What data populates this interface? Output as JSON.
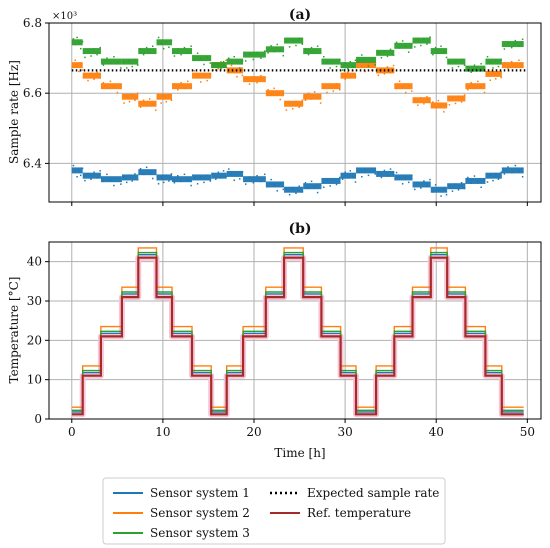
{
  "chart_data": [
    {
      "type": "scatter",
      "panel_label": "(a)",
      "xlabel": "",
      "ylabel": "Sample rate [Hz]",
      "y_multiplier_label": "×10³",
      "xlim": [
        -2.5,
        51.5
      ],
      "ylim": [
        6.29,
        6.8
      ],
      "xticks": [
        0,
        10,
        20,
        30,
        40,
        50
      ],
      "yticks": [
        6.4,
        6.6,
        6.8
      ],
      "ytick_labels": [
        "6.4",
        "6.6",
        "6.8"
      ],
      "xtick_labels_shown": false,
      "grid": true,
      "step_times": [
        0,
        1.2,
        3.2,
        5.5,
        7.3,
        9.3,
        11.0,
        13.2,
        15.3,
        17.0,
        18.8,
        21.3,
        23.3,
        25.4,
        27.4,
        29.5,
        31.2,
        33.4,
        35.4,
        37.4,
        39.4,
        41.2,
        43.2,
        45.4,
        47.2,
        49.6
      ],
      "expected_rate": 6.665,
      "series": [
        {
          "name": "Sensor system 1",
          "color": "#1f77b4",
          "values": [
            6.38,
            6.365,
            6.355,
            6.36,
            6.375,
            6.36,
            6.355,
            6.36,
            6.365,
            6.37,
            6.355,
            6.34,
            6.325,
            6.335,
            6.35,
            6.365,
            6.38,
            6.37,
            6.36,
            6.34,
            6.325,
            6.335,
            6.35,
            6.365,
            6.38
          ]
        },
        {
          "name": "Sensor system 2",
          "color": "#ff7f0e",
          "values": [
            6.68,
            6.65,
            6.62,
            6.59,
            6.57,
            6.59,
            6.62,
            6.65,
            6.68,
            6.665,
            6.64,
            6.6,
            6.57,
            6.59,
            6.62,
            6.65,
            6.68,
            6.665,
            6.62,
            6.58,
            6.565,
            6.585,
            6.62,
            6.655,
            6.68
          ]
        },
        {
          "name": "Sensor system 3",
          "color": "#2ca02c",
          "values": [
            6.745,
            6.72,
            6.69,
            6.69,
            6.72,
            6.745,
            6.72,
            6.7,
            6.68,
            6.69,
            6.71,
            6.725,
            6.75,
            6.72,
            6.69,
            6.68,
            6.695,
            6.715,
            6.735,
            6.75,
            6.72,
            6.69,
            6.67,
            6.69,
            6.74
          ]
        },
        {
          "name": "Expected sample rate",
          "color": "#000000",
          "style": "dotted",
          "x": [
            0,
            50
          ],
          "values": [
            6.665,
            6.665
          ]
        }
      ]
    },
    {
      "type": "line",
      "panel_label": "(b)",
      "xlabel": "Time [h]",
      "ylabel": "Temperature [°C]",
      "xlim": [
        -2.5,
        51.5
      ],
      "ylim": [
        0,
        45
      ],
      "xticks": [
        0,
        10,
        20,
        30,
        40,
        50
      ],
      "xtick_labels": [
        "0",
        "10",
        "20",
        "30",
        "40",
        "50"
      ],
      "yticks": [
        0,
        10,
        20,
        30,
        40
      ],
      "ytick_labels": [
        "0",
        "10",
        "20",
        "30",
        "40"
      ],
      "grid": true,
      "step_times": [
        0,
        1.2,
        3.2,
        5.5,
        7.3,
        9.3,
        11.0,
        13.2,
        15.3,
        17.0,
        18.8,
        21.3,
        23.3,
        25.4,
        27.4,
        29.5,
        31.2,
        33.4,
        35.4,
        37.4,
        39.4,
        41.2,
        43.2,
        45.4,
        47.2,
        49.6
      ],
      "series": [
        {
          "name": "Sensor system 1",
          "color": "#1f77b4",
          "offset": 0.3,
          "values": [
            1.5,
            11.5,
            21.5,
            31.5,
            41.5,
            31.5,
            21.5,
            11.5,
            1.5,
            11.5,
            21.5,
            31.5,
            41.5,
            31.5,
            21.5,
            11.5,
            1.5,
            11.5,
            21.5,
            31.5,
            41.5,
            31.5,
            21.5,
            11.5,
            1.5
          ]
        },
        {
          "name": "Sensor system 2",
          "color": "#ff7f0e",
          "values": [
            3.0,
            13.5,
            23.5,
            33.5,
            43.5,
            33.5,
            23.5,
            13.5,
            3.0,
            13.5,
            23.5,
            33.5,
            43.5,
            33.5,
            23.5,
            13.5,
            3.0,
            13.5,
            23.5,
            33.5,
            43.5,
            33.5,
            23.5,
            13.5,
            3.0
          ]
        },
        {
          "name": "Sensor system 3",
          "color": "#2ca02c",
          "values": [
            2.2,
            12.3,
            22.3,
            32.3,
            42.3,
            32.3,
            22.3,
            12.3,
            2.2,
            12.3,
            22.3,
            32.3,
            42.3,
            32.3,
            22.3,
            12.3,
            2.2,
            12.3,
            22.3,
            32.3,
            42.3,
            32.3,
            22.3,
            12.3,
            2.2
          ]
        },
        {
          "name": "Ref. temperature",
          "color": "#a52a2a",
          "values": [
            1.2,
            11.0,
            21.0,
            31.0,
            41.0,
            31.0,
            21.0,
            11.0,
            1.2,
            11.0,
            21.0,
            31.0,
            41.0,
            31.0,
            21.0,
            11.0,
            1.2,
            11.0,
            21.0,
            31.0,
            41.0,
            31.0,
            21.0,
            11.0,
            1.2
          ]
        }
      ]
    }
  ],
  "legend": {
    "position": "bottom",
    "items": [
      {
        "label": "Sensor system 1",
        "color": "#1f77b4",
        "style": "solid"
      },
      {
        "label": "Sensor system 2",
        "color": "#ff7f0e",
        "style": "solid"
      },
      {
        "label": "Sensor system 3",
        "color": "#2ca02c",
        "style": "solid"
      },
      {
        "label": "Expected sample rate",
        "color": "#000000",
        "style": "dotted"
      },
      {
        "label": "Ref. temperature",
        "color": "#a52a2a",
        "style": "solid"
      }
    ]
  }
}
